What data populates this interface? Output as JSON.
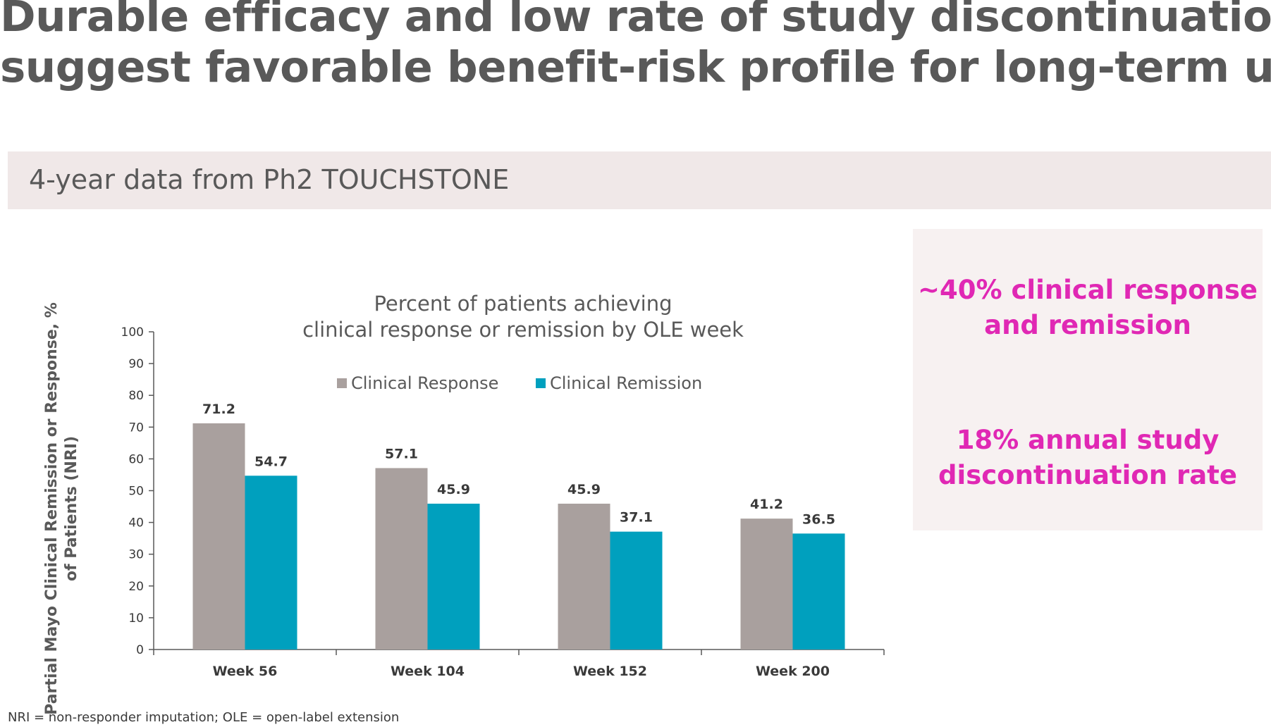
{
  "title": {
    "line1": "Durable efficacy and low rate of study discontinuation",
    "line2": "suggest favorable benefit-risk profile for long-term use"
  },
  "band": {
    "text": "4-year data from Ph2 TOUCHSTONE"
  },
  "callout": {
    "stat1_line1": "~40% clinical response",
    "stat1_line2": "and remission",
    "stat2_line1": "18% annual study",
    "stat2_line2": "discontinuation rate",
    "text_color": "#e028b4"
  },
  "footnote": "NRI = non-responder imputation; OLE = open-label extension",
  "chart_data": {
    "type": "bar",
    "title_line1": "Percent of patients achieving",
    "title_line2": "clinical response or remission by OLE week",
    "ylabel_line1": "Partial Mayo Clinical Remission or Response, %",
    "ylabel_line2": "of Patients (NRI)",
    "xlabel": "",
    "categories": [
      "Week 56",
      "Week 104",
      "Week 152",
      "Week 200"
    ],
    "series": [
      {
        "name": "Clinical Response",
        "color": "#a9a09e",
        "values": [
          71.2,
          57.1,
          45.9,
          41.2
        ]
      },
      {
        "name": "Clinical Remission",
        "color": "#00a0be",
        "values": [
          54.7,
          45.9,
          37.1,
          36.5
        ]
      }
    ],
    "ylim": [
      0,
      100
    ],
    "yticks": [
      0,
      10,
      20,
      30,
      40,
      50,
      60,
      70,
      80,
      90,
      100
    ],
    "grid": false,
    "legend_position": "top"
  }
}
